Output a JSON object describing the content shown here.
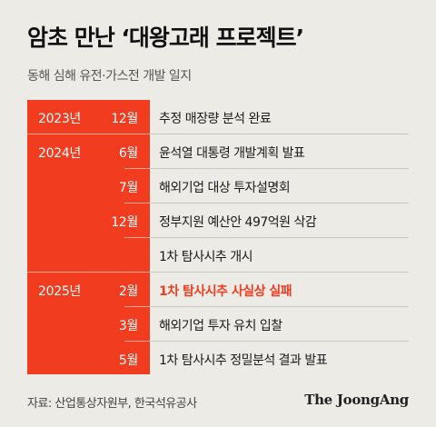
{
  "title": "암초 만난 ‘대왕고래 프로젝트’",
  "subtitle": "동해 심해 유전·가스전 개발 일지",
  "rows": [
    {
      "year": "2023년",
      "month": "12월",
      "event": "추정 매장량 분석 완료",
      "highlight": false
    },
    {
      "year": "2024년",
      "month": "6월",
      "event": "윤석열 대통령 개발계획 발표",
      "highlight": false
    },
    {
      "year": "",
      "month": "7월",
      "event": "해외기업 대상 투자설명회",
      "highlight": false
    },
    {
      "year": "",
      "month": "12월",
      "event": "정부지원 예산안 497억원 삭감",
      "highlight": false
    },
    {
      "year": "",
      "month": "",
      "event": "1차 탐사시추 개시",
      "highlight": false
    },
    {
      "year": "2025년",
      "month": "2월",
      "event": "1차 탐사시추 사실상 실패",
      "highlight": true
    },
    {
      "year": "",
      "month": "3월",
      "event": "해외기업 투자 유치 입찰",
      "highlight": false
    },
    {
      "year": "",
      "month": "5월",
      "event": "1차 탐사시추 정밀분석 결과 발표",
      "highlight": false
    }
  ],
  "footer": {
    "source": "자료: 산업통상자원부, 한국석유공사",
    "brand": "The JoongAng"
  },
  "colors": {
    "accent": "#f23c1f",
    "background": "#ecebe6"
  }
}
